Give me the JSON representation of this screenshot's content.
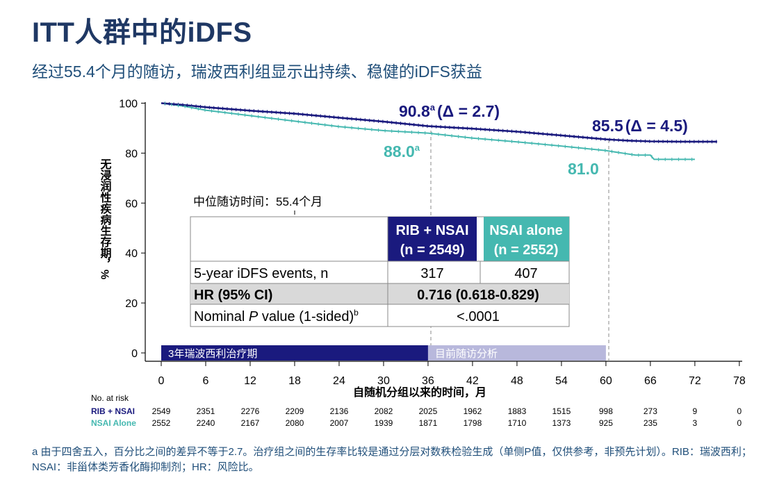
{
  "header": {
    "title": "ITT人群中的iDFS",
    "subtitle": "经过55.4个月的随访，瑞波西利组显示出持续、稳健的iDFS获益"
  },
  "footnote": "a 由于四舍五入，百分比之间的差异不等于2.7。治疗组之间的生存率比较是通过分层对数秩检验生成（单侧P值，仅供参考，非预先计划）。RIB：瑞波西利；NSAI：非甾体类芳香化酶抑制剂；HR：风险比。",
  "colors": {
    "rib": "#1a1a7e",
    "nsai": "#45b8b0",
    "title": "#1f3864",
    "navy_band": "#1a1a7e",
    "light_band": "#b8b8dc"
  },
  "chart_data": {
    "type": "line",
    "xlabel": "自随机分组以来的时间，月",
    "ylabel": "无浸润性疾病生存期，%",
    "xlim": [
      0,
      78
    ],
    "ylim": [
      0,
      100
    ],
    "xticks": [
      0,
      6,
      12,
      18,
      24,
      30,
      36,
      42,
      48,
      54,
      60,
      66,
      72,
      78
    ],
    "yticks": [
      0,
      20,
      40,
      60,
      80,
      100
    ],
    "series": [
      {
        "name": "RIB + NSAI",
        "color": "#1a1a7e",
        "x": [
          0,
          3,
          6,
          12,
          18,
          24,
          30,
          36,
          42,
          48,
          54,
          60,
          63,
          66,
          70,
          72,
          75
        ],
        "y": [
          100,
          99.3,
          98.4,
          97.0,
          95.8,
          94.2,
          92.6,
          90.8,
          89.8,
          88.6,
          87.1,
          85.5,
          85.0,
          84.7,
          84.6,
          84.6,
          84.6
        ]
      },
      {
        "name": "NSAI Alone",
        "color": "#45b8b0",
        "x": [
          0,
          3,
          6,
          12,
          18,
          24,
          30,
          36,
          42,
          48,
          54,
          60,
          64,
          66,
          66.5,
          72
        ],
        "y": [
          100,
          98.8,
          97.2,
          95.0,
          92.8,
          90.6,
          89.0,
          88.0,
          86.0,
          84.5,
          82.8,
          81.0,
          79.2,
          79.2,
          77.5,
          77.5
        ]
      }
    ],
    "annotations": {
      "rib_36": "90.8",
      "rib_36_sup": "a",
      "rib_36_delta": "(Δ = 2.7)",
      "rib_60": "85.5",
      "rib_60_delta": "(Δ = 4.5)",
      "nsai_36": "88.0",
      "nsai_36_sup": "a",
      "nsai_60": "81.0"
    },
    "bands": [
      {
        "label": "3年瑞波西利治疗期",
        "from": 0,
        "to": 36
      },
      {
        "label": "目前随访分析",
        "from": 36,
        "to": 60
      }
    ],
    "median_followup": "中位随访时间：55.4个月",
    "table": {
      "columns": [
        {
          "name": "RIB + NSAI",
          "n": "(n = 2549)"
        },
        {
          "name": "NSAI alone",
          "n": "(n = 2552)"
        }
      ],
      "rows": [
        {
          "label": "5-year iDFS events, n",
          "values": [
            "317",
            "407"
          ]
        },
        {
          "label": "HR (95% CI)",
          "value": "0.716 (0.618-0.829)"
        },
        {
          "label_pre": "Nominal ",
          "label_italic": "P",
          "label_post": " value (1-sided)",
          "label_sup": "b",
          "value": "<.0001"
        }
      ]
    },
    "at_risk": {
      "title": "No. at risk",
      "rows": [
        {
          "name": "RIB + NSAI",
          "values": [
            "2549",
            "2351",
            "2276",
            "2209",
            "2136",
            "2082",
            "2025",
            "1962",
            "1883",
            "1515",
            "998",
            "273",
            "9",
            "0"
          ]
        },
        {
          "name": "NSAI Alone",
          "values": [
            "2552",
            "2240",
            "2167",
            "2080",
            "2007",
            "1939",
            "1871",
            "1798",
            "1710",
            "1373",
            "925",
            "235",
            "3",
            "0"
          ]
        }
      ]
    }
  }
}
